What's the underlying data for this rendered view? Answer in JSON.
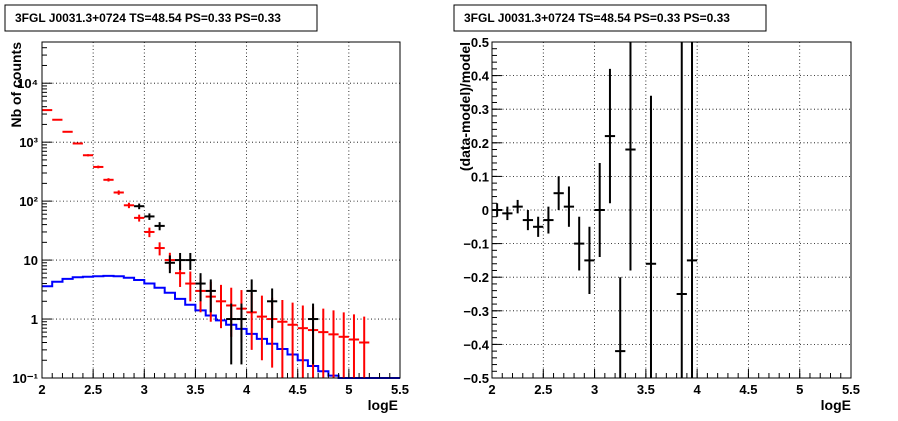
{
  "chart_data": [
    {
      "type": "histogram",
      "title": "3FGL J0031.3+0724 TS=48.54 PS=0.33 PS=0.33",
      "xlabel": "logE",
      "ylabel": "Nb of counts",
      "xlim": [
        2,
        5.5
      ],
      "ylim": [
        0.1,
        50000
      ],
      "yscale": "log",
      "grid": true,
      "x_tick_labels": [
        "2",
        "2.5",
        "3",
        "3.5",
        "4",
        "4.5",
        "5",
        "5.5"
      ],
      "y_tick_labels": [
        "10⁻¹",
        "1",
        "10",
        "10²",
        "10³",
        "10⁴"
      ],
      "series": [
        {
          "color": "#0000ff",
          "style": "step",
          "x": [
            2.0,
            2.1,
            2.2,
            2.3,
            2.4,
            2.5,
            2.6,
            2.7,
            2.8,
            2.9,
            3.0,
            3.1,
            3.2,
            3.3,
            3.4,
            3.5,
            3.6,
            3.7,
            3.8,
            3.9,
            4.0,
            4.1,
            4.2,
            4.3,
            4.4,
            4.5,
            4.6,
            4.7,
            4.8,
            4.9,
            5.0,
            5.1,
            5.2,
            5.3,
            5.4
          ],
          "values": [
            3.6,
            4.3,
            4.8,
            5.1,
            5.2,
            5.3,
            5.4,
            5.3,
            5.0,
            4.6,
            4.0,
            3.4,
            2.8,
            2.2,
            1.75,
            1.4,
            1.15,
            0.95,
            0.8,
            0.68,
            0.56,
            0.46,
            0.38,
            0.31,
            0.25,
            0.2,
            0.16,
            0.13,
            0.11,
            0.1,
            0.1,
            0.1,
            0.1,
            0.1,
            0.1
          ]
        },
        {
          "color": "#ff0000",
          "style": "errorbar",
          "x": [
            2.05,
            2.15,
            2.25,
            2.35,
            2.45,
            2.55,
            2.65,
            2.75,
            2.85,
            2.95,
            3.05,
            3.15,
            3.25,
            3.35,
            3.45,
            3.55,
            3.65,
            3.75,
            3.85,
            3.95,
            4.05,
            4.15,
            4.25,
            4.35,
            4.45,
            4.55,
            4.65,
            4.75,
            4.85,
            4.95,
            5.05,
            5.15
          ],
          "y": [
            3500,
            2400,
            1500,
            950,
            600,
            380,
            230,
            140,
            85,
            52,
            30,
            16,
            10,
            6,
            4,
            3,
            2.4,
            2,
            1.7,
            1.5,
            1.3,
            1.1,
            1,
            0.9,
            0.8,
            0.7,
            0.65,
            0.6,
            0.55,
            0.5,
            0.45,
            0.4
          ],
          "yerr_low": [
            60,
            50,
            40,
            30,
            25,
            20,
            15,
            12,
            9,
            7,
            5.5,
            4,
            3,
            2.5,
            2,
            1.7,
            1.5,
            1.3,
            1.2,
            1.1,
            1.0,
            0.9,
            0.85,
            0.8,
            0.75,
            0.65,
            0.6,
            0.57,
            0.52,
            0.48,
            0.44,
            0.39
          ],
          "yerr_high": [
            60,
            50,
            40,
            30,
            25,
            20,
            15,
            12,
            9,
            7,
            5.5,
            4,
            3.3,
            2.8,
            2.4,
            2.1,
            1.9,
            1.8,
            1.7,
            1.6,
            1.5,
            1.4,
            1.3,
            1.2,
            1.1,
            1.0,
            0.95,
            0.9,
            0.85,
            0.8,
            0.75,
            0.7
          ]
        },
        {
          "color": "#000000",
          "style": "errorbar",
          "x": [
            2.95,
            3.05,
            3.15,
            3.25,
            3.35,
            3.45,
            3.55,
            3.65,
            3.85,
            3.95,
            4.05,
            4.25,
            4.65
          ],
          "y": [
            82,
            55,
            38,
            9,
            10,
            10,
            4,
            3,
            1,
            1,
            3,
            2,
            1
          ],
          "yerr_low": [
            9,
            7,
            6,
            3,
            3.2,
            3.2,
            2,
            1.7,
            0.83,
            0.83,
            1.7,
            1.3,
            0.83
          ],
          "yerr_high": [
            9,
            7,
            6,
            3,
            3.2,
            3.2,
            2,
            1.7,
            0.83,
            0.83,
            1.7,
            1.3,
            0.83
          ]
        }
      ]
    },
    {
      "type": "scatter",
      "title": "3FGL J0031.3+0724 TS=48.54 PS=0.33 PS=0.33",
      "xlabel": "logE",
      "ylabel": "(data-model)/model",
      "xlim": [
        2,
        5.5
      ],
      "ylim": [
        -0.5,
        0.5
      ],
      "grid": true,
      "x_tick_labels": [
        "2",
        "2.5",
        "3",
        "3.5",
        "4",
        "4.5",
        "5",
        "5.5"
      ],
      "y_tick_labels": [
        "−0.5",
        "−0.4",
        "−0.3",
        "−0.2",
        "−0.1",
        "0",
        "0.1",
        "0.2",
        "0.3",
        "0.4",
        "0.5"
      ],
      "series": [
        {
          "color": "#000000",
          "style": "errorbar",
          "x": [
            2.05,
            2.15,
            2.25,
            2.35,
            2.45,
            2.55,
            2.65,
            2.75,
            2.85,
            2.95,
            3.05,
            3.15,
            3.25,
            3.35,
            3.55,
            3.85,
            3.95
          ],
          "y": [
            0.0,
            -0.01,
            0.01,
            -0.03,
            -0.05,
            -0.03,
            0.05,
            0.01,
            -0.1,
            -0.15,
            0.0,
            0.22,
            -0.42,
            0.18,
            -0.16,
            -0.25,
            -0.15
          ],
          "yerr": [
            0.02,
            0.02,
            0.02,
            0.03,
            0.03,
            0.04,
            0.05,
            0.06,
            0.08,
            0.1,
            0.14,
            0.2,
            0.22,
            0.36,
            0.5,
            0.75,
            0.8
          ]
        }
      ]
    }
  ]
}
